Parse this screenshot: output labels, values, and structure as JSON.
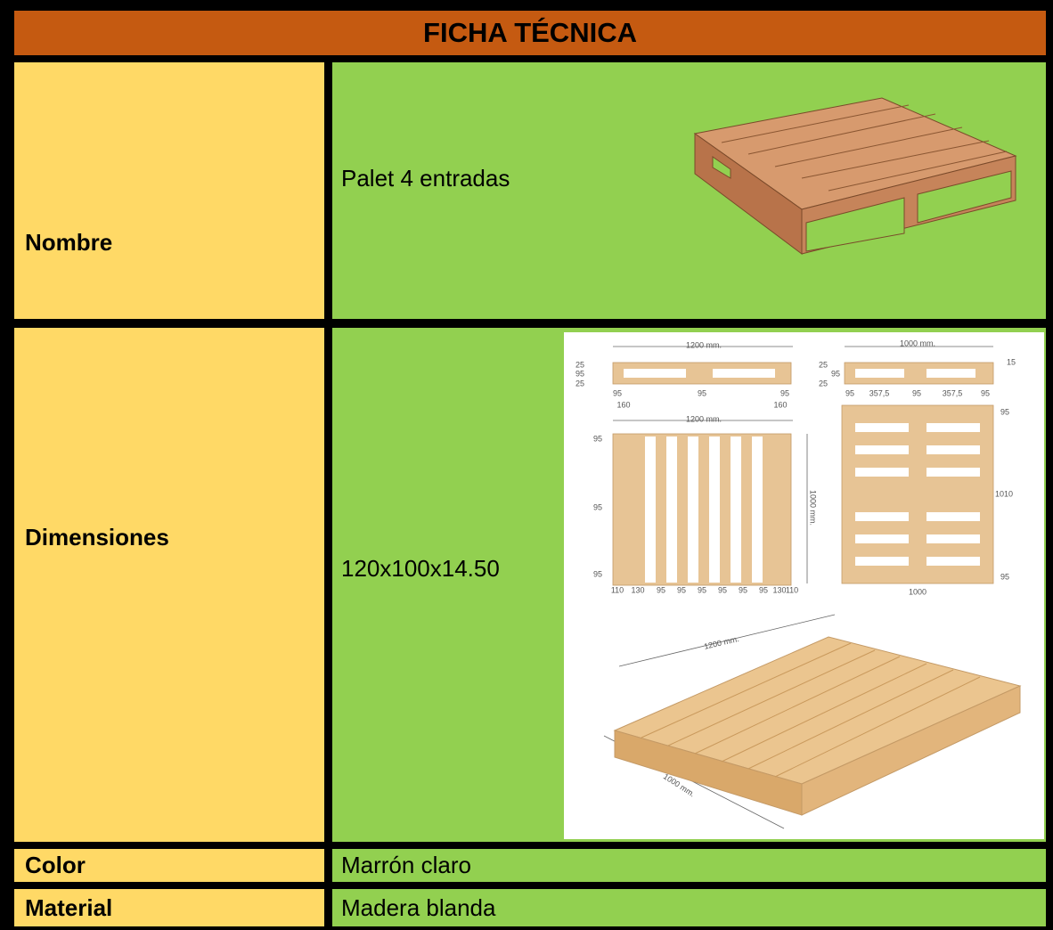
{
  "header": {
    "title": "FICHA TÉCNICA"
  },
  "table": {
    "rows": [
      [
        "Nombre",
        "Palet 4 entradas"
      ],
      [
        "Dimensiones",
        "120x100x14.50"
      ],
      [
        "Color",
        "Marrón claro"
      ],
      [
        "Material",
        "Madera blanda"
      ]
    ]
  },
  "diagram": {
    "labels": [
      "1200 mm.",
      "1000 mm.",
      "15",
      "25",
      "95",
      "25",
      "25",
      "95",
      "25",
      "95",
      "95",
      "95",
      "160",
      "160",
      "95",
      "357,5",
      "95",
      "357,5",
      "95",
      "1200 mm.",
      "95",
      "95",
      "95",
      "1000 mm.",
      "110",
      "130",
      "95",
      "95",
      "95",
      "95",
      "95",
      "95",
      "130",
      "110",
      "95",
      "1010",
      "95",
      "1000",
      "1200 mm.",
      "1000 mm."
    ]
  }
}
